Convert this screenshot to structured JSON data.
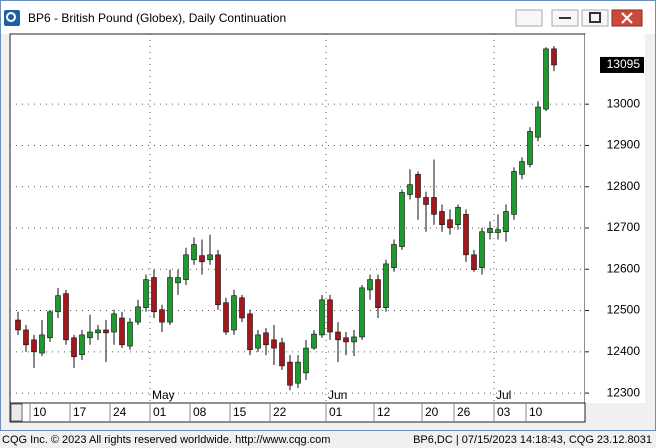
{
  "window_title": "BP6 - British Pound (Globex), Daily Continuation",
  "footer_left": "CQG Inc. © 2023 All rights reserved worldwide. http://www.cqg.com",
  "footer_right": "BP6,DC | 07/15/2023 14:18:43, CQG 23.12.8031",
  "chart_data": {
    "type": "candlestick",
    "up_color": "#1f9a2e",
    "down_color": "#a3181c",
    "ylim": [
      12276,
      13170
    ],
    "yticks": [
      12300,
      12400,
      12500,
      12600,
      12700,
      12800,
      12900,
      13000
    ],
    "grid": true,
    "categories": [
      null,
      null,
      "10",
      null,
      null,
      null,
      null,
      "17",
      null,
      null,
      null,
      null,
      "24",
      null,
      null,
      null,
      null,
      "01",
      null,
      null,
      null,
      null,
      "08",
      null,
      null,
      null,
      null,
      "15",
      null,
      null,
      null,
      null,
      "22",
      null,
      null,
      null,
      null,
      null,
      null,
      "01",
      null,
      null,
      null,
      null,
      null,
      "12",
      null,
      null,
      null,
      null,
      null,
      "20",
      null,
      null,
      null,
      "26",
      null,
      null,
      null,
      null,
      "03",
      null,
      null,
      null,
      "10",
      null,
      null,
      null
    ],
    "months": [
      null,
      null,
      null,
      null,
      null,
      null,
      null,
      null,
      null,
      null,
      null,
      null,
      null,
      null,
      null,
      null,
      null,
      "May",
      null,
      null,
      null,
      null,
      null,
      null,
      null,
      null,
      null,
      null,
      null,
      null,
      null,
      null,
      null,
      null,
      null,
      null,
      null,
      null,
      null,
      "Jun",
      null,
      null,
      null,
      null,
      null,
      null,
      null,
      null,
      null,
      null,
      null,
      null,
      null,
      null,
      null,
      null,
      null,
      null,
      null,
      null,
      "Jul",
      null,
      null,
      null,
      null,
      null,
      null,
      null
    ],
    "open": [
      12477,
      12453,
      12429,
      12397,
      12434,
      12497,
      12541,
      12434,
      12393,
      12434,
      12446,
      12453,
      12448,
      12482,
      12414,
      12472,
      12507,
      12580,
      12502,
      12472,
      12567,
      12575,
      12623,
      12633,
      12623,
      12635,
      12519,
      12453,
      12531,
      12492,
      12409,
      12446,
      12429,
      12422,
      12375,
      12324,
      12349,
      12409,
      12441,
      12526,
      12448,
      12434,
      12424,
      12436,
      12550,
      12575,
      12507,
      12604,
      12655,
      12781,
      12830,
      12774,
      12774,
      12740,
      12720,
      12708,
      12733,
      12635,
      12604,
      12689,
      12689,
      12691,
      12733,
      12830,
      12854,
      12920,
      12988,
      13134
    ],
    "high": [
      12497,
      12465,
      12441,
      12477,
      12502,
      12555,
      12550,
      12441,
      12453,
      12490,
      12465,
      12477,
      12502,
      12497,
      12482,
      12526,
      12587,
      12599,
      12514,
      12599,
      12599,
      12652,
      12677,
      12672,
      12684,
      12647,
      12531,
      12550,
      12538,
      12502,
      12453,
      12458,
      12465,
      12434,
      12392,
      12392,
      12429,
      12453,
      12538,
      12538,
      12472,
      12448,
      12453,
      12562,
      12587,
      12587,
      12623,
      12672,
      12793,
      12842,
      12837,
      12788,
      12866,
      12757,
      12745,
      12757,
      12745,
      12647,
      12701,
      12716,
      12733,
      12757,
      12847,
      12871,
      12944,
      13007,
      13138,
      13141
    ],
    "low": [
      12441,
      12400,
      12361,
      12390,
      12424,
      12482,
      12417,
      12361,
      12380,
      12417,
      12429,
      12375,
      12417,
      12409,
      12405,
      12465,
      12497,
      12482,
      12448,
      12465,
      12538,
      12562,
      12611,
      12587,
      12611,
      12502,
      12441,
      12441,
      12472,
      12392,
      12400,
      12392,
      12368,
      12356,
      12307,
      12312,
      12332,
      12405,
      12434,
      12429,
      12375,
      12392,
      12390,
      12429,
      12526,
      12482,
      12497,
      12594,
      12647,
      12769,
      12720,
      12691,
      12708,
      12691,
      12684,
      12696,
      12618,
      12594,
      12587,
      12672,
      12672,
      12667,
      12720,
      12818,
      12847,
      12910,
      12983,
      13080
    ],
    "close": [
      12453,
      12417,
      12400,
      12441,
      12497,
      12536,
      12429,
      12388,
      12441,
      12448,
      12453,
      12446,
      12492,
      12417,
      12472,
      12509,
      12575,
      12497,
      12472,
      12580,
      12580,
      12635,
      12660,
      12618,
      12635,
      12514,
      12448,
      12536,
      12482,
      12405,
      12441,
      12417,
      12409,
      12366,
      12319,
      12375,
      12409,
      12443,
      12526,
      12448,
      12429,
      12424,
      12436,
      12555,
      12575,
      12507,
      12613,
      12660,
      12786,
      12805,
      12774,
      12757,
      12733,
      12708,
      12701,
      12750,
      12635,
      12599,
      12691,
      12699,
      12696,
      12740,
      12837,
      12861,
      12934,
      12993,
      13134,
      13095
    ]
  }
}
